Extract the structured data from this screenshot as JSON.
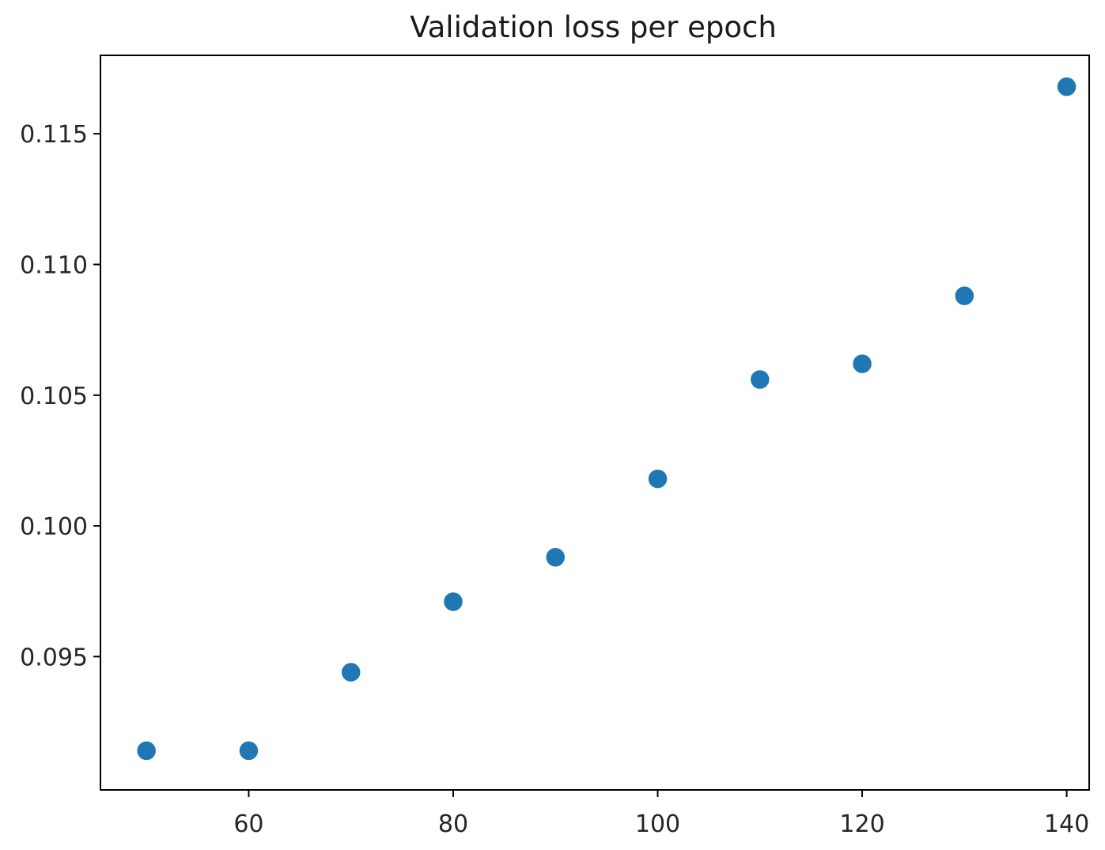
{
  "chart_data": {
    "type": "scatter",
    "title": "Validation loss per epoch",
    "xlabel": "",
    "ylabel": "",
    "x": [
      50,
      60,
      70,
      80,
      90,
      100,
      110,
      120,
      130,
      140
    ],
    "y": [
      0.0914,
      0.0914,
      0.0944,
      0.0971,
      0.0988,
      0.1018,
      0.1056,
      0.1062,
      0.1088,
      0.1168
    ],
    "xlim": [
      45.5,
      142.2
    ],
    "ylim": [
      0.0899,
      0.118
    ],
    "xticks": [
      60,
      80,
      100,
      120,
      140
    ],
    "xtick_labels": [
      "60",
      "80",
      "100",
      "120",
      "140"
    ],
    "yticks": [
      0.095,
      0.1,
      0.105,
      0.11,
      0.115
    ],
    "ytick_labels": [
      "0.095",
      "0.100",
      "0.105",
      "0.110",
      "0.115"
    ],
    "grid": false,
    "legend": "none",
    "marker_color": "#1f77b4",
    "axis_color": "#000000"
  }
}
